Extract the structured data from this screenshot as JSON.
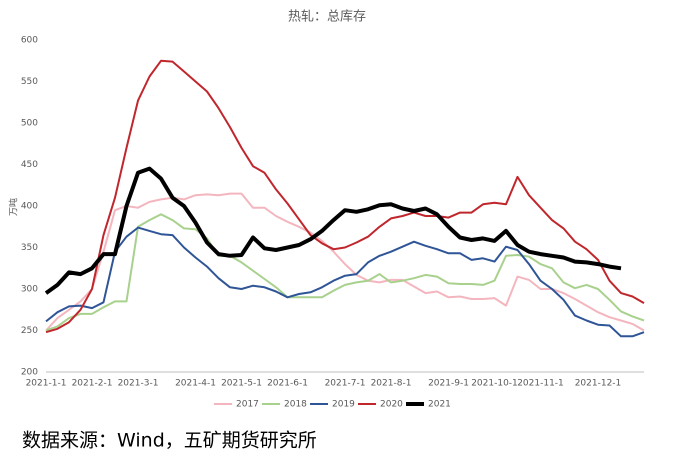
{
  "chart_data": {
    "type": "line",
    "title": "热轧：总库存",
    "ylabel": "万吨",
    "source": "数据来源：Wind，五矿期货研究所",
    "categories": [
      "2021-1-1",
      null,
      null,
      null,
      "2021-2-1",
      null,
      null,
      null,
      "2021-3-1",
      null,
      null,
      null,
      null,
      "2021-4-1",
      null,
      null,
      null,
      "2021-5-1",
      null,
      null,
      null,
      "2021-6-1",
      null,
      null,
      null,
      null,
      "2021-7-1",
      null,
      null,
      null,
      "2021-8-1",
      null,
      null,
      null,
      null,
      "2021-9-1",
      null,
      null,
      null,
      "2021-10-1",
      null,
      null,
      null,
      "2021-11-1",
      null,
      null,
      null,
      null,
      "2021-12-1",
      null,
      null,
      null,
      null
    ],
    "series": [
      {
        "name": "2017",
        "color": "#f4b6be",
        "values": [
          250,
          265,
          275,
          285,
          300,
          345,
          395,
          400,
          398,
          405,
          408,
          410,
          408,
          413,
          414,
          413,
          415,
          415,
          398,
          398,
          388,
          381,
          375,
          368,
          358,
          345,
          330,
          317,
          310,
          308,
          311,
          311,
          303,
          295,
          297,
          290,
          291,
          288,
          288,
          289,
          280,
          315,
          311,
          300,
          300,
          295,
          288,
          280,
          272,
          266,
          262,
          258,
          250
        ]
      },
      {
        "name": "2018",
        "color": "#a9d18e",
        "values": [
          250,
          255,
          265,
          270,
          270,
          278,
          285,
          285,
          375,
          383,
          390,
          383,
          373,
          372,
          361,
          340,
          340,
          332,
          322,
          312,
          302,
          290,
          290,
          290,
          290,
          298,
          305,
          308,
          310,
          318,
          308,
          310,
          313,
          317,
          315,
          307,
          306,
          306,
          305,
          310,
          340,
          341,
          339,
          330,
          325,
          308,
          301,
          305,
          300,
          287,
          273,
          267,
          262
        ]
      },
      {
        "name": "2019",
        "color": "#2f5597",
        "values": [
          261,
          272,
          279,
          280,
          277,
          284,
          345,
          363,
          374,
          370,
          366,
          365,
          350,
          338,
          327,
          313,
          302,
          300,
          304,
          302,
          297,
          290,
          294,
          296,
          302,
          310,
          316,
          318,
          332,
          340,
          345,
          351,
          357,
          352,
          348,
          343,
          343,
          335,
          337,
          333,
          351,
          347,
          330,
          310,
          300,
          287,
          268,
          262,
          257,
          256,
          243,
          243,
          248
        ]
      },
      {
        "name": "2020",
        "color": "#c0272d",
        "values": [
          248,
          252,
          260,
          275,
          300,
          365,
          410,
          470,
          527,
          556,
          575,
          574,
          562,
          550,
          538,
          518,
          495,
          470,
          448,
          440,
          420,
          403,
          384,
          365,
          355,
          348,
          350,
          356,
          363,
          375,
          385,
          388,
          392,
          388,
          388,
          386,
          392,
          392,
          402,
          404,
          402,
          435,
          413,
          398,
          383,
          373,
          357,
          348,
          335,
          310,
          295,
          291,
          283
        ]
      },
      {
        "name": "2021",
        "color": "#000000",
        "values": [
          295,
          305,
          320,
          318,
          325,
          342,
          342,
          400,
          440,
          445,
          433,
          410,
          400,
          380,
          356,
          342,
          340,
          341,
          362,
          349,
          347,
          350,
          353,
          360,
          370,
          383,
          395,
          393,
          396,
          401,
          402,
          397,
          394,
          397,
          390,
          375,
          362,
          359,
          361,
          358,
          370,
          353,
          345,
          342,
          340,
          338,
          333,
          332,
          330,
          327,
          325,
          null,
          null
        ]
      }
    ],
    "ylim": [
      200,
      600
    ],
    "yticks": [
      200,
      250,
      300,
      350,
      400,
      450,
      500,
      550,
      600
    ],
    "grid": false,
    "legend": "bottom"
  }
}
